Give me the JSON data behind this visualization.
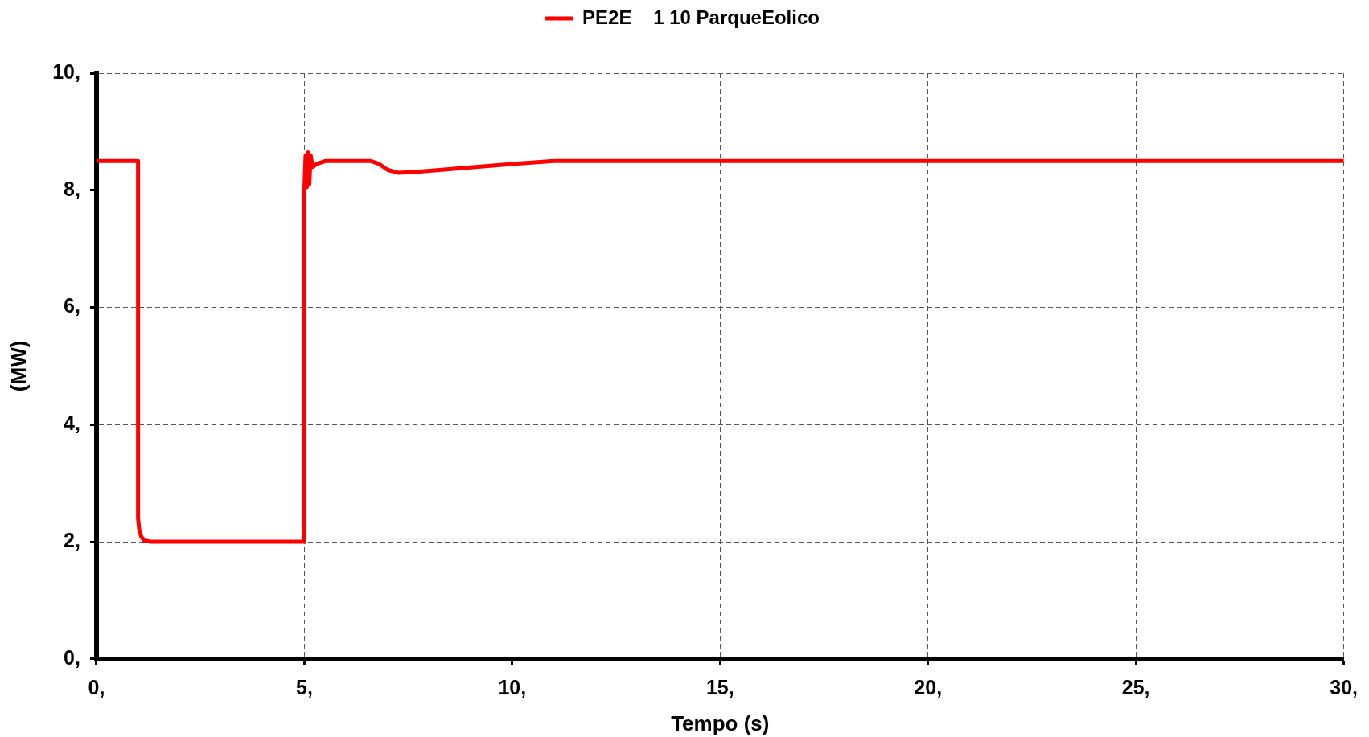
{
  "chart_data": {
    "type": "line",
    "xlabel": "Tempo (s)",
    "ylabel": "(MW)",
    "x": [
      0,
      1.0,
      1.0,
      1.03,
      1.08,
      1.15,
      1.3,
      5.0,
      5.0,
      5.03,
      5.06,
      5.09,
      5.12,
      5.15,
      5.2,
      5.3,
      5.5,
      6.6,
      6.8,
      7.0,
      7.25,
      7.6,
      10.0,
      11.0,
      30
    ],
    "series": [
      {
        "name": "PE2E    1 10 ParqueEolico",
        "color": "#ff0000",
        "values": [
          8.5,
          8.5,
          2.4,
          2.2,
          2.08,
          2.02,
          2.0,
          2.0,
          8.0,
          8.6,
          8.05,
          8.65,
          8.1,
          8.6,
          8.4,
          8.45,
          8.5,
          8.5,
          8.45,
          8.35,
          8.3,
          8.31,
          8.45,
          8.5,
          8.5
        ]
      }
    ],
    "xlim": [
      0,
      30
    ],
    "xticks": [
      {
        "value": 0,
        "label": "0,"
      },
      {
        "value": 5,
        "label": "5,"
      },
      {
        "value": 10,
        "label": "10,"
      },
      {
        "value": 15,
        "label": "15,"
      },
      {
        "value": 20,
        "label": "20,"
      },
      {
        "value": 25,
        "label": "25,"
      },
      {
        "value": 30,
        "label": "30,"
      }
    ],
    "ylim": [
      0,
      10
    ],
    "yticks": [
      {
        "value": 0,
        "label": "0,"
      },
      {
        "value": 2,
        "label": "2,"
      },
      {
        "value": 4,
        "label": "4,"
      },
      {
        "value": 6,
        "label": "6,"
      },
      {
        "value": 8,
        "label": "8,"
      },
      {
        "value": 10,
        "label": "10,"
      }
    ],
    "grid": true,
    "legend": "top"
  }
}
